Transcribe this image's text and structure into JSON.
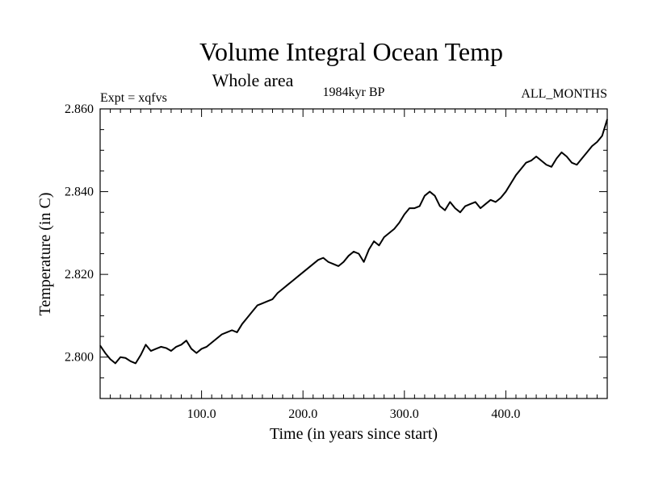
{
  "chart_data": {
    "type": "line",
    "title": "Volume Integral Ocean Temp",
    "subtitle": "Whole area",
    "left_label": "Expt = xqfvs",
    "center_label": "1984kyr BP",
    "right_label": "ALL_MONTHS",
    "xlabel": "Time (in years since start)",
    "ylabel": "Temperature (in C)",
    "xlim": [
      0,
      500
    ],
    "ylim": [
      2.79,
      2.86
    ],
    "x_ticks": [
      100,
      200,
      300,
      400
    ],
    "x_tick_labels": [
      "100.0",
      "200.0",
      "300.0",
      "400.0"
    ],
    "y_ticks": [
      2.8,
      2.82,
      2.84,
      2.86
    ],
    "y_tick_labels": [
      "2.800",
      "2.820",
      "2.840",
      "2.860"
    ],
    "line_color": "#000000",
    "series": [
      {
        "name": "Volume Integral Ocean Temp",
        "x": [
          0,
          5,
          10,
          15,
          20,
          25,
          30,
          35,
          40,
          45,
          50,
          55,
          60,
          65,
          70,
          75,
          80,
          85,
          90,
          95,
          100,
          105,
          110,
          115,
          120,
          125,
          130,
          135,
          140,
          145,
          150,
          155,
          160,
          165,
          170,
          175,
          180,
          185,
          190,
          195,
          200,
          205,
          210,
          215,
          220,
          225,
          230,
          235,
          240,
          245,
          250,
          255,
          260,
          265,
          270,
          275,
          280,
          285,
          290,
          295,
          300,
          305,
          310,
          315,
          320,
          325,
          330,
          335,
          340,
          345,
          350,
          355,
          360,
          365,
          370,
          375,
          380,
          385,
          390,
          395,
          400,
          405,
          410,
          415,
          420,
          425,
          430,
          435,
          440,
          445,
          450,
          455,
          460,
          465,
          470,
          475,
          480,
          485,
          490,
          495,
          500
        ],
        "values": [
          2.8028,
          2.801,
          2.7995,
          2.7985,
          2.8,
          2.7998,
          2.799,
          2.7985,
          2.8005,
          2.803,
          2.8015,
          2.802,
          2.8025,
          2.8022,
          2.8015,
          2.8025,
          2.803,
          2.804,
          2.802,
          2.801,
          2.802,
          2.8025,
          2.8035,
          2.8045,
          2.8055,
          2.806,
          2.8065,
          2.806,
          2.808,
          2.8095,
          2.811,
          2.8125,
          2.813,
          2.8135,
          2.814,
          2.8155,
          2.8165,
          2.8175,
          2.8185,
          2.8195,
          2.8205,
          2.8215,
          2.8225,
          2.8235,
          2.824,
          2.823,
          2.8225,
          2.822,
          2.823,
          2.8245,
          2.8255,
          2.825,
          2.823,
          2.826,
          2.828,
          2.827,
          2.829,
          2.83,
          2.831,
          2.8325,
          2.8345,
          2.836,
          2.836,
          2.8365,
          2.839,
          2.84,
          2.839,
          2.8365,
          2.8355,
          2.8375,
          2.836,
          2.835,
          2.8365,
          2.837,
          2.8375,
          2.836,
          2.837,
          2.838,
          2.8375,
          2.8385,
          2.84,
          2.842,
          2.844,
          2.8455,
          2.847,
          2.8475,
          2.8485,
          2.8475,
          2.8465,
          2.846,
          2.848,
          2.8495,
          2.8485,
          2.847,
          2.8465,
          2.848,
          2.8495,
          2.851,
          2.852,
          2.8535,
          2.8575
        ]
      }
    ]
  }
}
